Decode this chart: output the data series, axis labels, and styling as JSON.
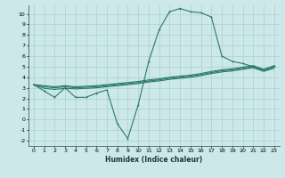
{
  "xlabel": "Humidex (Indice chaleur)",
  "bg_color": "#cce8e8",
  "grid_color": "#b0d4d4",
  "line_color": "#2a7a6a",
  "xlim": [
    -0.5,
    23.5
  ],
  "ylim": [
    -2.5,
    10.8
  ],
  "xticks": [
    0,
    1,
    2,
    3,
    4,
    5,
    6,
    7,
    8,
    9,
    10,
    11,
    12,
    13,
    14,
    15,
    16,
    17,
    18,
    19,
    20,
    21,
    22,
    23
  ],
  "yticks": [
    -2,
    -1,
    0,
    1,
    2,
    3,
    4,
    5,
    6,
    7,
    8,
    9,
    10
  ],
  "main_x": [
    0,
    1,
    2,
    3,
    4,
    5,
    6,
    7,
    8,
    9,
    10,
    11,
    12,
    13,
    14,
    15,
    16,
    17,
    18,
    19,
    20,
    21,
    22,
    23
  ],
  "main_y": [
    3.3,
    2.7,
    2.1,
    3.0,
    2.1,
    2.1,
    2.5,
    2.8,
    -0.4,
    -1.8,
    1.4,
    5.5,
    8.5,
    10.2,
    10.5,
    10.2,
    10.1,
    9.7,
    6.0,
    5.5,
    5.3,
    5.0,
    4.7,
    5.1
  ],
  "band1_x": [
    0,
    1,
    2,
    3,
    4,
    5,
    6,
    7,
    8,
    9,
    10,
    11,
    12,
    13,
    14,
    15,
    16,
    17,
    18,
    19,
    20,
    21,
    22,
    23
  ],
  "band1_y": [
    3.3,
    3.2,
    3.1,
    3.2,
    3.1,
    3.15,
    3.2,
    3.3,
    3.4,
    3.5,
    3.6,
    3.75,
    3.85,
    4.0,
    4.1,
    4.2,
    4.35,
    4.55,
    4.7,
    4.8,
    4.95,
    5.1,
    4.75,
    5.05
  ],
  "band2_x": [
    0,
    1,
    2,
    3,
    4,
    5,
    6,
    7,
    8,
    9,
    10,
    11,
    12,
    13,
    14,
    15,
    16,
    17,
    18,
    19,
    20,
    21,
    22,
    23
  ],
  "band2_y": [
    3.3,
    3.1,
    3.0,
    3.1,
    3.0,
    3.05,
    3.1,
    3.2,
    3.3,
    3.4,
    3.5,
    3.65,
    3.75,
    3.9,
    4.0,
    4.1,
    4.25,
    4.45,
    4.6,
    4.7,
    4.85,
    5.0,
    4.65,
    4.95
  ],
  "band3_x": [
    0,
    1,
    2,
    3,
    4,
    5,
    6,
    7,
    8,
    9,
    10,
    11,
    12,
    13,
    14,
    15,
    16,
    17,
    18,
    19,
    20,
    21,
    22,
    23
  ],
  "band3_y": [
    3.3,
    2.95,
    2.85,
    2.95,
    2.9,
    2.95,
    3.0,
    3.1,
    3.2,
    3.3,
    3.4,
    3.55,
    3.65,
    3.8,
    3.9,
    4.0,
    4.15,
    4.35,
    4.5,
    4.6,
    4.75,
    4.9,
    4.55,
    4.85
  ]
}
